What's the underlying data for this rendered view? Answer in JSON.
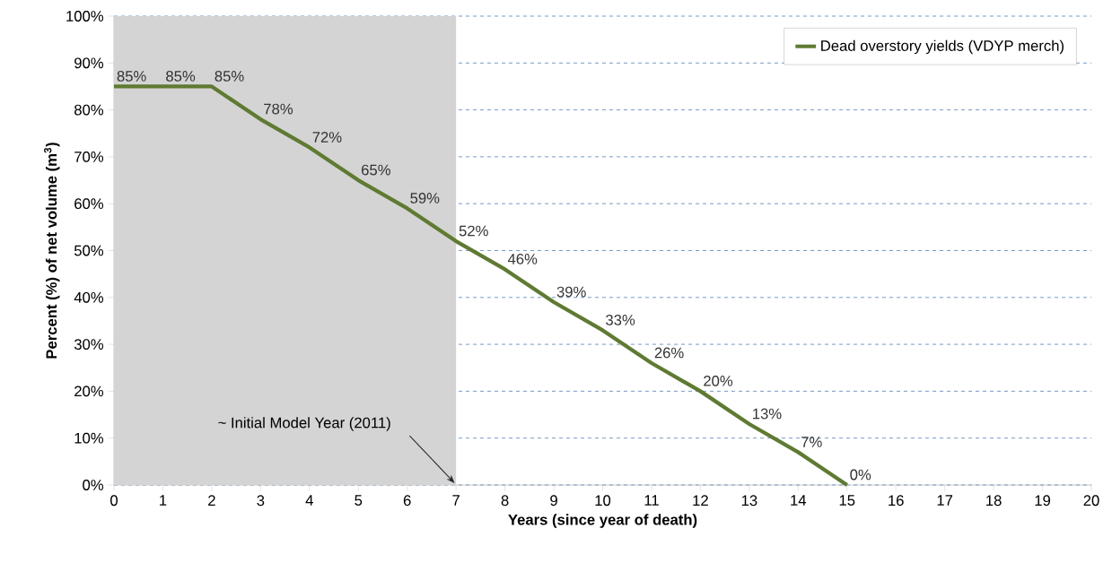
{
  "chart_data": {
    "type": "line",
    "xlabel": "Years (since year of death)",
    "ylabel": "Percent (%) of net volume (m$^{3}$)",
    "x": [
      0,
      1,
      2,
      3,
      4,
      5,
      6,
      7,
      8,
      9,
      10,
      11,
      12,
      13,
      14,
      15
    ],
    "series": [
      {
        "name": "Dead overstory yields (VDYP merch)",
        "color": "#5f7a32",
        "values": [
          85,
          85,
          85,
          78,
          72,
          65,
          59,
          52,
          46,
          39,
          33,
          26,
          20,
          13,
          7,
          0
        ],
        "value_labels": [
          "85%",
          "85%",
          "85%",
          "78%",
          "72%",
          "65%",
          "59%",
          "52%",
          "46%",
          "39%",
          "33%",
          "26%",
          "20%",
          "13%",
          "7%",
          "0%"
        ]
      }
    ],
    "xlim": [
      0,
      20
    ],
    "xticks": [
      0,
      1,
      2,
      3,
      4,
      5,
      6,
      7,
      8,
      9,
      10,
      11,
      12,
      13,
      14,
      15,
      16,
      17,
      18,
      19,
      20
    ],
    "ylim": [
      0,
      100
    ],
    "yticks": [
      {
        "value": 0,
        "label": "0%"
      },
      {
        "value": 10,
        "label": "10%"
      },
      {
        "value": 20,
        "label": "20%"
      },
      {
        "value": 30,
        "label": "30%"
      },
      {
        "value": 40,
        "label": "40%"
      },
      {
        "value": 50,
        "label": "50%"
      },
      {
        "value": 60,
        "label": "60%"
      },
      {
        "value": 70,
        "label": "70%"
      },
      {
        "value": 80,
        "label": "80%"
      },
      {
        "value": 90,
        "label": "90%"
      },
      {
        "value": 100,
        "label": "100%"
      }
    ],
    "bands": [
      {
        "axis": "x",
        "from": 0,
        "to": 7,
        "color": "#d4d4d4"
      }
    ],
    "annotations": [
      "~ Initial Model Year (2011)"
    ],
    "grid": "y",
    "legend": "top right",
    "marker": "none",
    "line_style": "solid"
  }
}
